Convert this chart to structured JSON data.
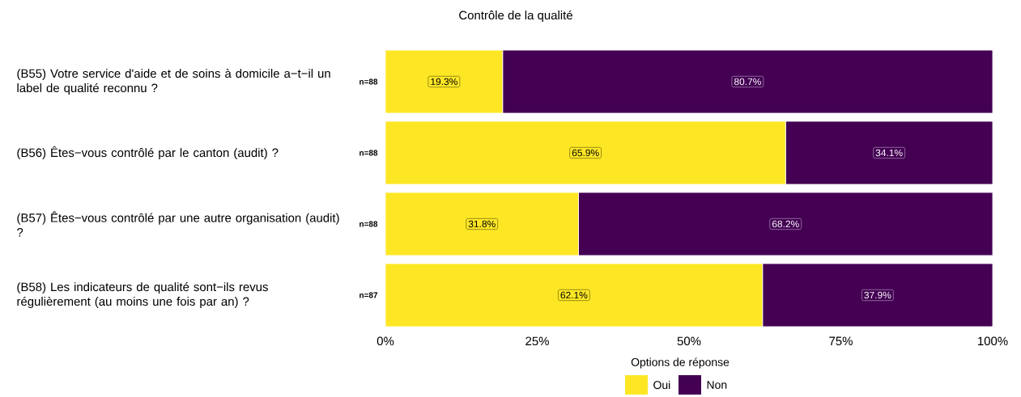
{
  "chart_data": {
    "type": "bar",
    "title": "Contrôle de la qualité",
    "orientation": "horizontal",
    "stacked": true,
    "categories": [
      "(B55) Votre service d'aide et de soins à domicile a−t−il un label de qualité reconnu ?",
      "(B56) Êtes−vous contrôlé par le canton (audit) ?",
      "(B57) Êtes−vous contrôlé par une autre organisation (audit) ?",
      "(B58) Les indicateurs de qualité sont−ils revus régulièrement (au moins une fois par an) ?"
    ],
    "series": [
      {
        "name": "Oui",
        "color": "#fde725",
        "values": [
          19.3,
          65.9,
          31.8,
          62.1
        ],
        "value_labels": [
          "19.3%",
          "65.9%",
          "31.8%",
          "62.1%"
        ]
      },
      {
        "name": "Non",
        "color": "#440154",
        "values": [
          80.7,
          34.1,
          68.2,
          37.9
        ],
        "value_labels": [
          "80.7%",
          "34.1%",
          "68.2%",
          "37.9%"
        ]
      }
    ],
    "xlim": [
      0,
      100
    ],
    "xticks": [
      {
        "value": 0,
        "label": "0%"
      },
      {
        "value": 25,
        "label": "25%"
      },
      {
        "value": 50,
        "label": "50%"
      },
      {
        "value": 75,
        "label": "75%"
      },
      {
        "value": 100,
        "label": "100%"
      }
    ],
    "legend": "bottom",
    "legend_title": "Options de réponse",
    "annotations": [
      "n=88",
      "n=88",
      "n=88",
      "n=87"
    ]
  }
}
